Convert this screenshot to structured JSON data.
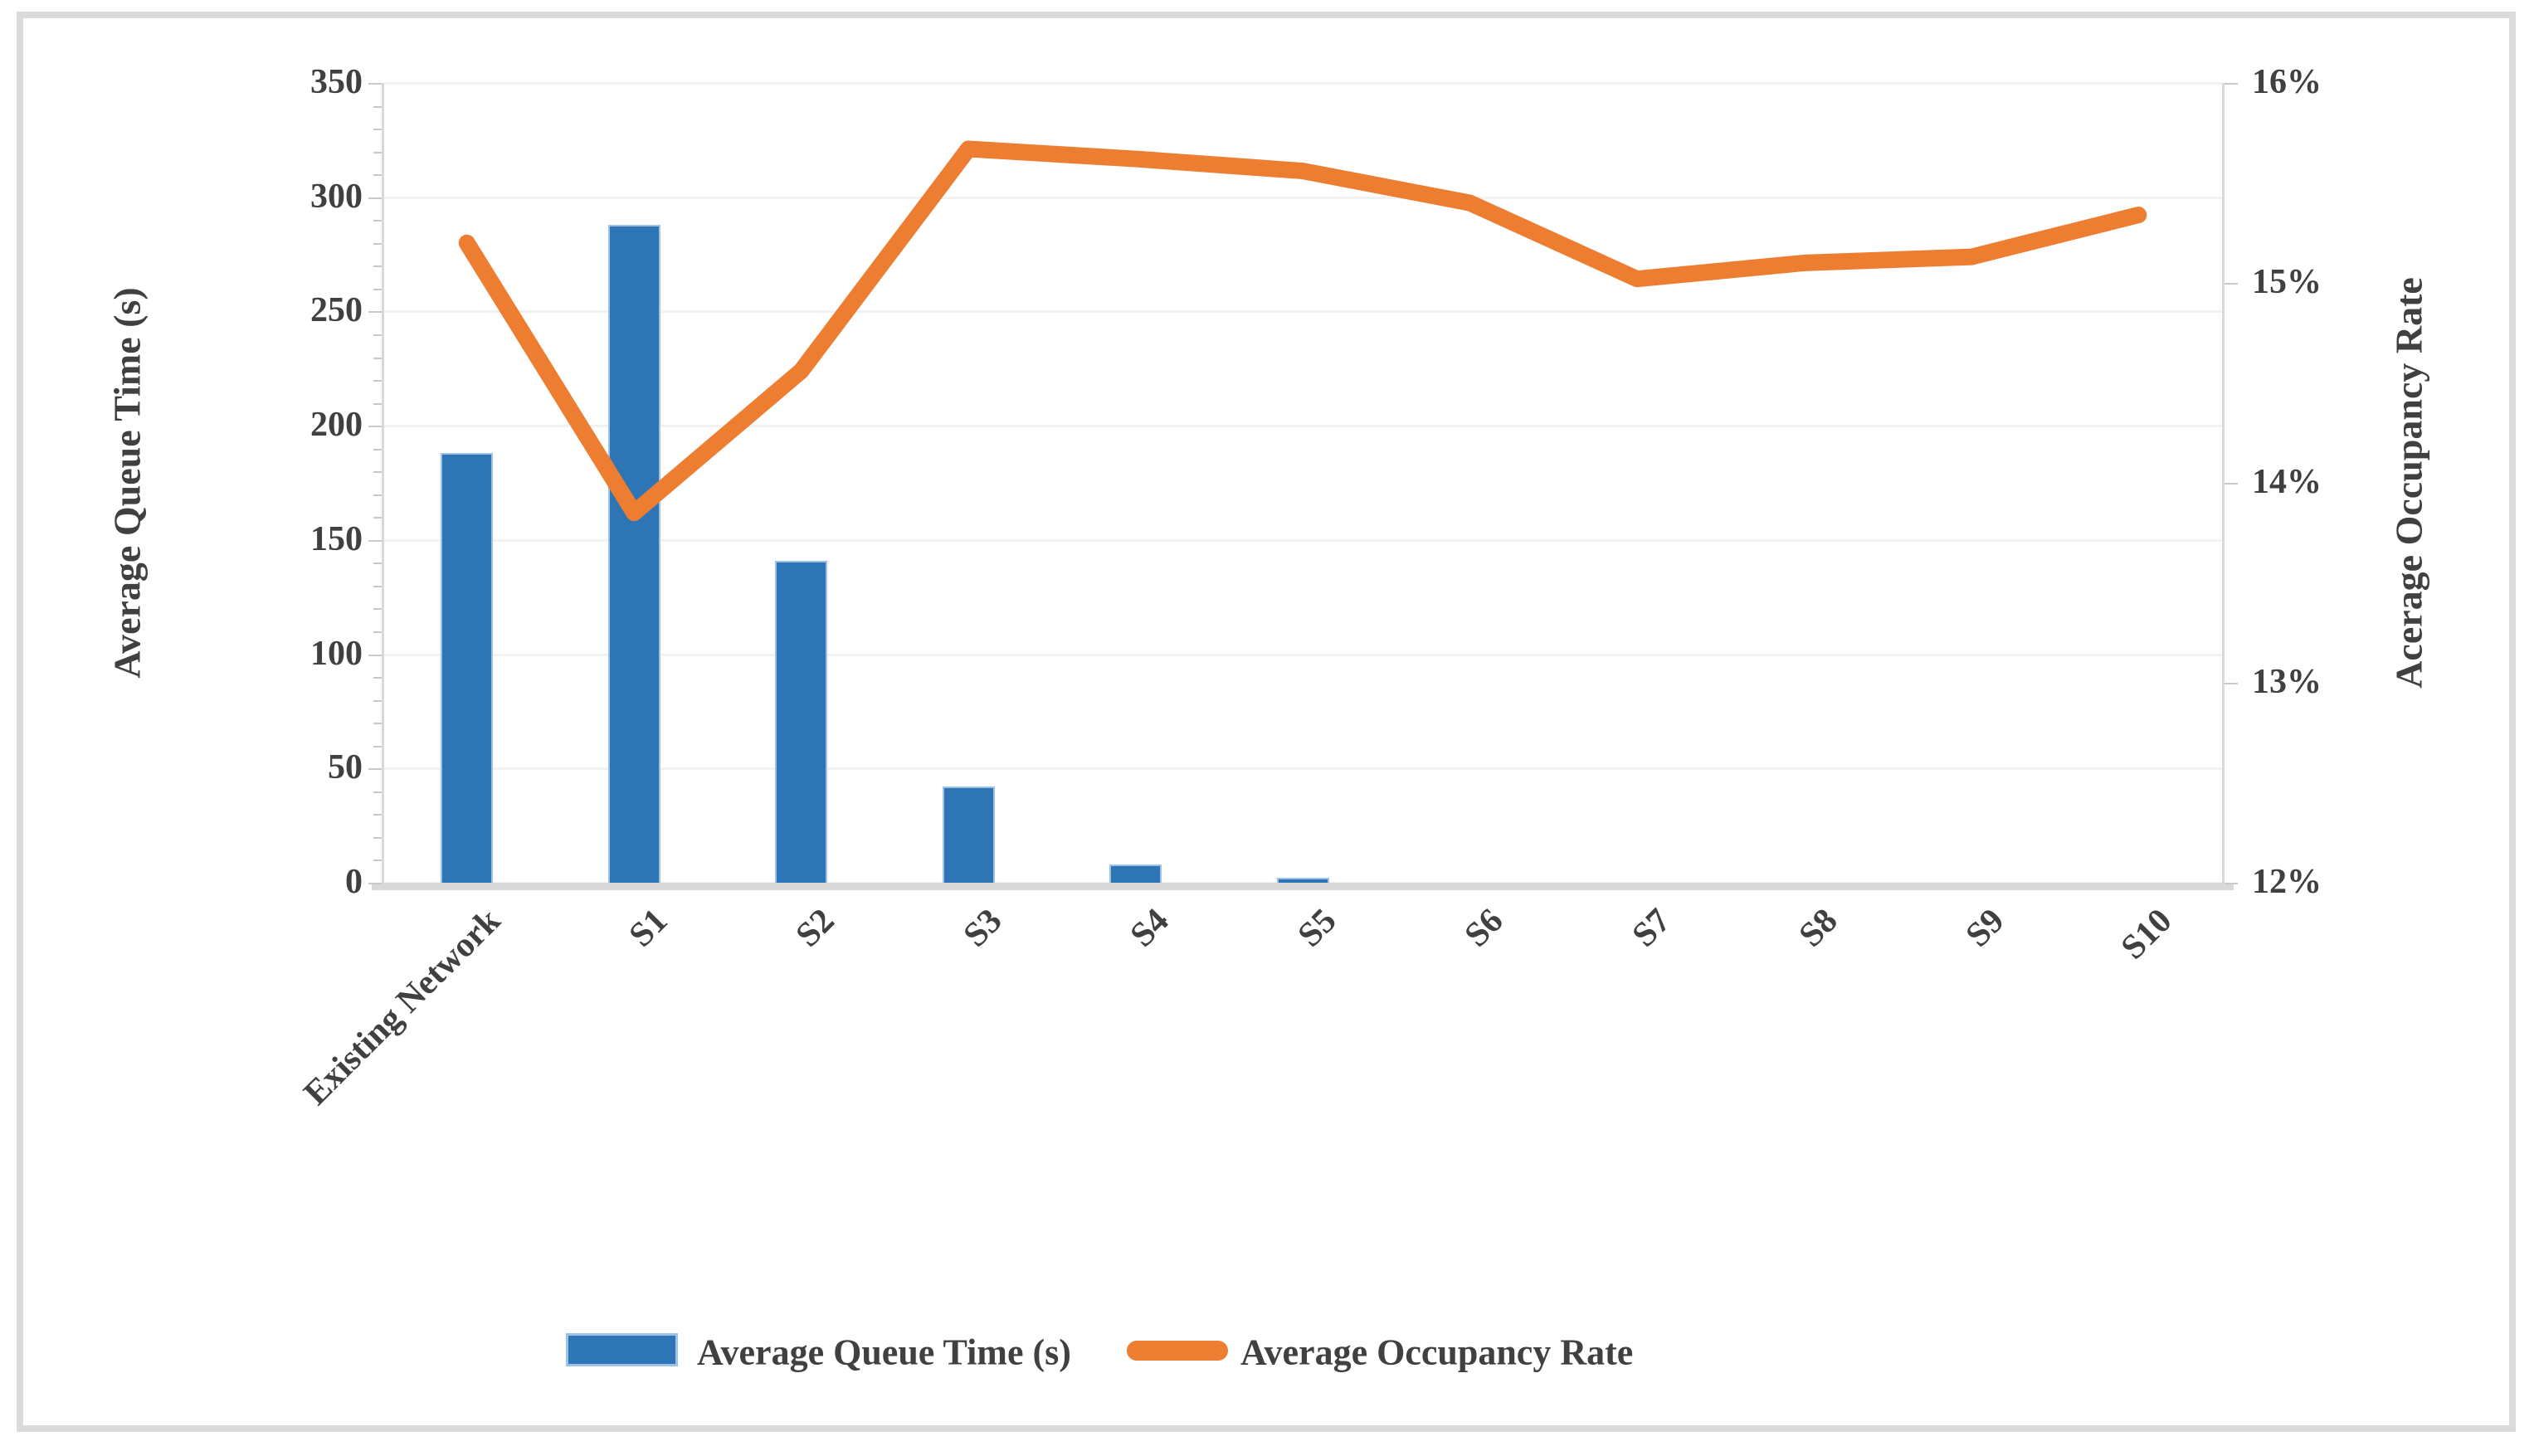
{
  "chart_data": {
    "type": "bar",
    "subtype": "combo-bar-line-dual-axis",
    "title": "",
    "categories": [
      "Existing Network",
      "S1",
      "S2",
      "S3",
      "S4",
      "S5",
      "S6",
      "S7",
      "S8",
      "S9",
      "S10"
    ],
    "series": [
      {
        "name": "Average Queue Time (s)",
        "type": "bar",
        "axis": "left",
        "values": [
          188,
          288,
          141,
          42,
          8,
          2,
          0,
          0,
          0,
          0,
          0
        ]
      },
      {
        "name": "Average Occupancy Rate",
        "type": "line",
        "axis": "right",
        "values_percent": [
          15.2,
          13.85,
          14.56,
          15.67,
          15.62,
          15.56,
          15.4,
          15.02,
          15.1,
          15.13,
          15.34
        ]
      }
    ],
    "left_axis": {
      "title": "Average Queue Time (s)",
      "min": 0,
      "max": 350,
      "step": 50,
      "minor_tick_step": 10,
      "tick_labels": [
        "350",
        "300",
        "250",
        "200",
        "150",
        "100",
        "50",
        "0"
      ]
    },
    "right_axis": {
      "title": "Acerage Occupancy Rate",
      "min": 12,
      "max": 16,
      "step": 1,
      "tick_labels": [
        "16%",
        "15%",
        "14%",
        "13%",
        "12%"
      ]
    },
    "legend": {
      "position": "bottom",
      "items": [
        {
          "label": "Average Queue Time (s)",
          "marker": "bar"
        },
        {
          "label": "Average Occupancy Rate",
          "marker": "line"
        }
      ]
    },
    "grid": true
  },
  "colors": {
    "bar_fill": "#2E75B6",
    "bar_border": "#9CC2E5",
    "line": "#ED7D31",
    "gridline": "#F2F2F2",
    "plot_border": "#D9D9D9",
    "axis_line": "#D9D9D9",
    "tick": "#C9C9C9",
    "text": "#404040",
    "figure_border": "#DBDBDB",
    "background": "#FFFFFF"
  }
}
